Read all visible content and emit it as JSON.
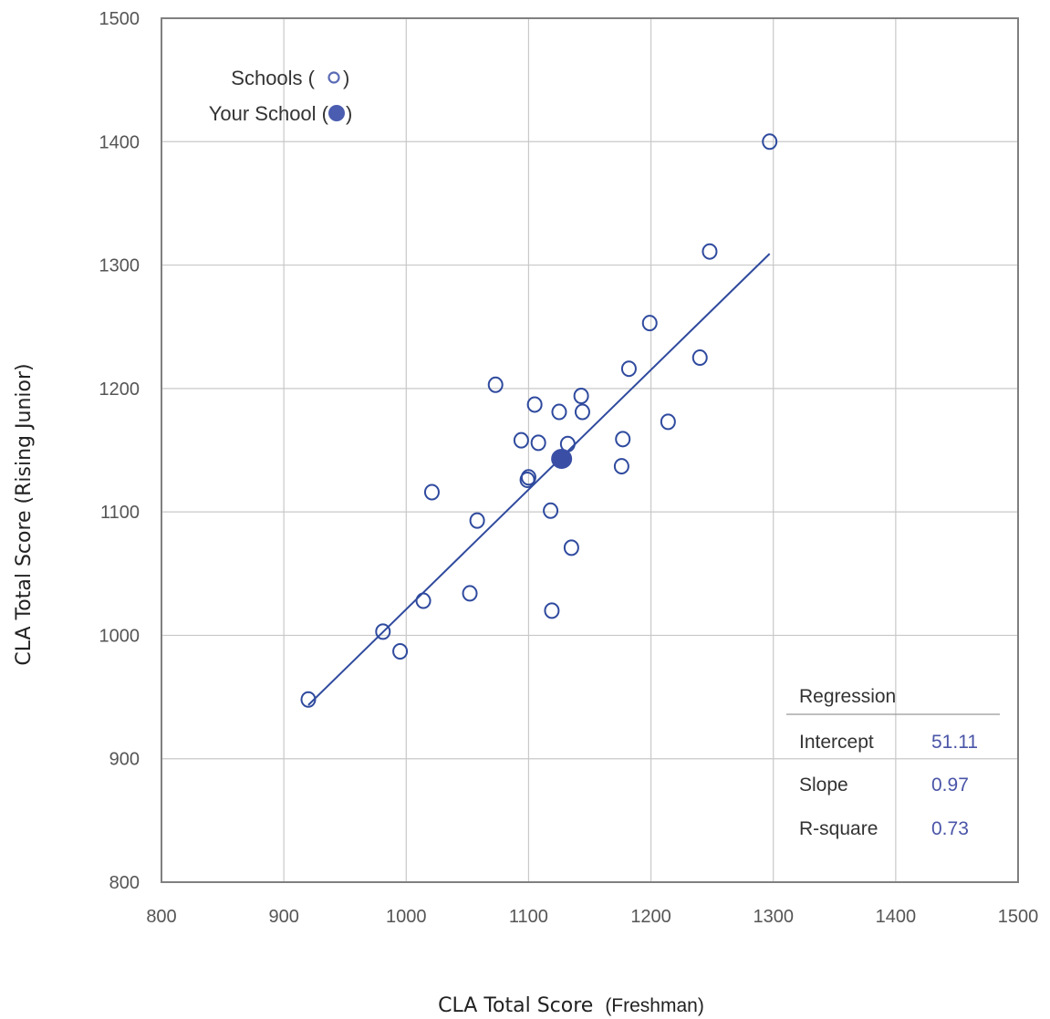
{
  "chart_data": {
    "type": "scatter",
    "xlabel_main": "CLA Total Score",
    "xlabel_sub": "(Freshman)",
    "ylabel": "CLA Total Score (Rising Junior)",
    "xlim": [
      800,
      1500
    ],
    "ylim": [
      800,
      1500
    ],
    "x_ticks": [
      "800",
      "900",
      "1000",
      "1100",
      "1200",
      "1300",
      "1400",
      "1500"
    ],
    "y_ticks": [
      "800",
      "900",
      "1000",
      "1100",
      "1200",
      "1300",
      "1400",
      "1500"
    ],
    "grid": true,
    "legend": {
      "placement": "top-left",
      "items": [
        {
          "label_pre": "Schools (",
          "label_post": ")",
          "marker": "open-circle"
        },
        {
          "label_pre": "Your School (",
          "label_post": ")",
          "marker": "filled-circle"
        }
      ]
    },
    "series": [
      {
        "name": "Schools",
        "marker": "open-circle",
        "points": [
          {
            "x": 920,
            "y": 948
          },
          {
            "x": 981,
            "y": 1003
          },
          {
            "x": 995,
            "y": 987
          },
          {
            "x": 1014,
            "y": 1028
          },
          {
            "x": 1021,
            "y": 1116
          },
          {
            "x": 1052,
            "y": 1034
          },
          {
            "x": 1058,
            "y": 1093
          },
          {
            "x": 1073,
            "y": 1203
          },
          {
            "x": 1094,
            "y": 1158
          },
          {
            "x": 1099,
            "y": 1126
          },
          {
            "x": 1100,
            "y": 1128
          },
          {
            "x": 1105,
            "y": 1187
          },
          {
            "x": 1108,
            "y": 1156
          },
          {
            "x": 1118,
            "y": 1101
          },
          {
            "x": 1119,
            "y": 1020
          },
          {
            "x": 1125,
            "y": 1181
          },
          {
            "x": 1132,
            "y": 1155
          },
          {
            "x": 1135,
            "y": 1071
          },
          {
            "x": 1143,
            "y": 1194
          },
          {
            "x": 1144,
            "y": 1181
          },
          {
            "x": 1176,
            "y": 1137
          },
          {
            "x": 1177,
            "y": 1159
          },
          {
            "x": 1182,
            "y": 1216
          },
          {
            "x": 1199,
            "y": 1253
          },
          {
            "x": 1214,
            "y": 1173
          },
          {
            "x": 1240,
            "y": 1225
          },
          {
            "x": 1248,
            "y": 1311
          },
          {
            "x": 1297,
            "y": 1400
          }
        ]
      },
      {
        "name": "Your School",
        "marker": "filled-circle",
        "points": [
          {
            "x": 1127,
            "y": 1143
          }
        ]
      }
    ],
    "regression_line": {
      "x_start": 920,
      "x_end": 1297,
      "intercept": 51.11,
      "slope": 0.97
    },
    "stats_table": {
      "title": "Regression",
      "rows": [
        {
          "label": "Intercept",
          "value": "51.11"
        },
        {
          "label": "Slope",
          "value": "0.97"
        },
        {
          "label": "R-square",
          "value": "0.73"
        }
      ]
    },
    "colors": {
      "marker": "#2f4a9e",
      "filled_marker": "#3a4ea6",
      "line": "#2f4a9e",
      "grid": "#c8c8c8",
      "frame": "#808080",
      "legend_open_marker": "#5b6bb5",
      "legend_filled_marker": "#4a5db0"
    }
  }
}
